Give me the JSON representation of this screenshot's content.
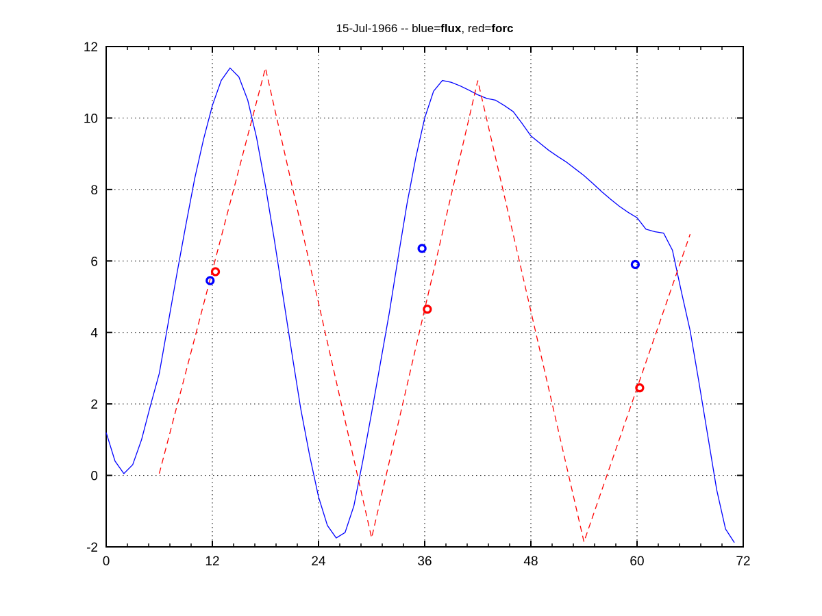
{
  "figure": {
    "background": "#ffffff",
    "title": {
      "prefix": "15-Jul-1966 -- blue=",
      "flux": "flux",
      "middle": ", red=",
      "forc": "forc"
    }
  },
  "chart_data": {
    "type": "line",
    "title": "15-Jul-1966 -- blue=flux, red=forc",
    "xlabel": "",
    "ylabel": "",
    "xlim": [
      0,
      72
    ],
    "ylim": [
      -2,
      12
    ],
    "x_major_ticks": [
      0,
      12,
      24,
      36,
      48,
      60,
      72
    ],
    "x_minor_step": 2.4,
    "y_major_ticks": [
      -2,
      0,
      2,
      4,
      6,
      8,
      10,
      12
    ],
    "grid": "dotted-major",
    "legend_note": "blue=flux, red=forc (encoded in title, no legend box)",
    "axis_color": "#000000",
    "grid_color": "#000000",
    "series": [
      {
        "name": "flux",
        "color": "#0000ff",
        "style": "solid",
        "x_start": 0,
        "x_step": 1,
        "values": [
          1.2,
          0.4,
          0.05,
          0.3,
          1.0,
          1.95,
          2.85,
          4.25,
          5.65,
          7.0,
          8.3,
          9.4,
          10.35,
          11.05,
          11.4,
          11.15,
          10.5,
          9.45,
          8.1,
          6.6,
          5.0,
          3.4,
          1.85,
          0.55,
          -0.6,
          -1.4,
          -1.75,
          -1.6,
          -0.85,
          0.4,
          1.75,
          3.15,
          4.55,
          6.1,
          7.6,
          8.9,
          10.0,
          10.75,
          11.05,
          11.0,
          10.9,
          10.78,
          10.65,
          10.55,
          10.5,
          10.35,
          10.18,
          9.85,
          9.5,
          9.3,
          9.1,
          8.93,
          8.77,
          8.58,
          8.39,
          8.17,
          7.94,
          7.73,
          7.53,
          7.36,
          7.21,
          6.89,
          6.82,
          6.78,
          6.3,
          5.15,
          4.05,
          2.6,
          1.1,
          -0.4,
          -1.5,
          -1.88
        ]
      },
      {
        "name": "forc",
        "color": "#ff0000",
        "style": "dashed",
        "points": [
          [
            6,
            0.05
          ],
          [
            18,
            11.4
          ],
          [
            30,
            -1.75
          ],
          [
            42,
            11.05
          ],
          [
            54,
            -1.86
          ],
          [
            66,
            6.75
          ]
        ]
      }
    ],
    "markers": [
      {
        "name": "flux-samples",
        "color": "#0000ff",
        "shape": "circle",
        "points": [
          [
            11.75,
            5.45
          ],
          [
            35.7,
            6.35
          ],
          [
            59.8,
            5.9
          ]
        ]
      },
      {
        "name": "forc-samples",
        "color": "#ff0000",
        "shape": "circle",
        "points": [
          [
            12.35,
            5.7
          ],
          [
            36.3,
            4.65
          ],
          [
            60.3,
            2.45
          ]
        ]
      }
    ]
  }
}
